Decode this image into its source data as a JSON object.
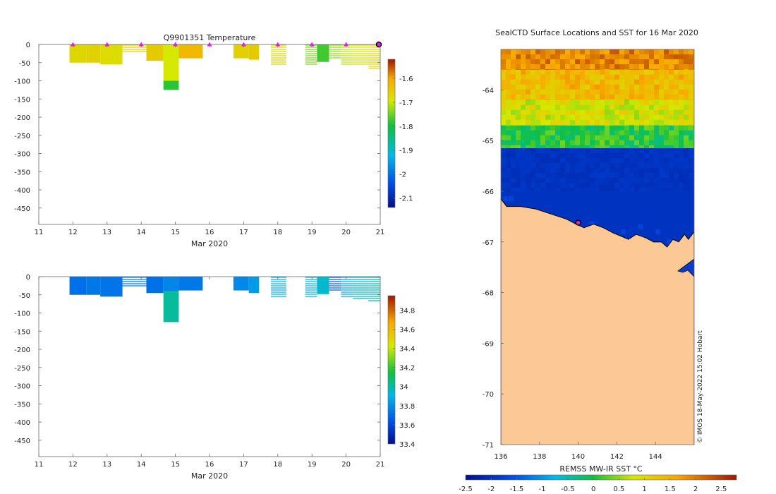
{
  "chart_data": [
    {
      "type": "heatmap",
      "id": "temperature",
      "title": "Q9901351  Temperature",
      "xlabel": "Mar 2020",
      "x_ticks": [
        11,
        12,
        13,
        14,
        15,
        16,
        17,
        18,
        19,
        20,
        21
      ],
      "xlim": [
        11,
        21
      ],
      "y_ticks": [
        0,
        -50,
        -100,
        -150,
        -200,
        -250,
        -300,
        -350,
        -400,
        -450
      ],
      "ylim": [
        -495,
        0
      ],
      "colorbar": {
        "ticks": [
          -1.6,
          -1.7,
          -1.8,
          -1.9,
          -2,
          -2.1
        ],
        "range": [
          -2.14,
          -1.52
        ]
      },
      "profile_markers": [
        12,
        13,
        14,
        15,
        16,
        17,
        18,
        19,
        20
      ],
      "last_position_marker": 21,
      "casts": [
        {
          "x0": 11.9,
          "x1": 12.4,
          "depth": 50,
          "value": -1.72,
          "style": "block"
        },
        {
          "x0": 12.4,
          "x1": 12.8,
          "depth": 50,
          "value": -1.71,
          "style": "block"
        },
        {
          "x0": 12.8,
          "x1": 13.45,
          "depth": 55,
          "value": -1.73,
          "style": "block"
        },
        {
          "x0": 13.45,
          "x1": 14.15,
          "depth": 25,
          "value": -1.71,
          "style": "lines"
        },
        {
          "x0": 14.15,
          "x1": 14.65,
          "depth": 45,
          "value": -1.7,
          "style": "block"
        },
        {
          "x0": 14.65,
          "x1": 15.1,
          "depth": 100,
          "value": -1.75,
          "style": "block"
        },
        {
          "x0": 14.65,
          "x1": 15.1,
          "top": 100,
          "depth": 125,
          "value": -1.83,
          "style": "block"
        },
        {
          "x0": 15.1,
          "x1": 15.8,
          "depth": 38,
          "value": -1.67,
          "style": "block"
        },
        {
          "x0": 16.7,
          "x1": 17.15,
          "depth": 38,
          "value": -1.71,
          "style": "block"
        },
        {
          "x0": 17.15,
          "x1": 17.45,
          "depth": 42,
          "value": -1.7,
          "style": "block"
        },
        {
          "x0": 17.8,
          "x1": 18.25,
          "depth": 60,
          "value": -1.72,
          "style": "lines"
        },
        {
          "x0": 18.8,
          "x1": 19.15,
          "depth": 58,
          "value": -1.79,
          "style": "lines"
        },
        {
          "x0": 19.15,
          "x1": 19.5,
          "depth": 48,
          "value": -1.82,
          "style": "block"
        },
        {
          "x0": 19.5,
          "x1": 19.85,
          "depth": 40,
          "value": -1.78,
          "style": "lines"
        },
        {
          "x0": 19.85,
          "x1": 20.2,
          "depth": 55,
          "value": -1.76,
          "style": "lines"
        },
        {
          "x0": 20.2,
          "x1": 20.65,
          "depth": 60,
          "value": -1.74,
          "style": "lines"
        },
        {
          "x0": 20.65,
          "x1": 21.0,
          "depth": 68,
          "value": -1.72,
          "style": "lines"
        }
      ]
    },
    {
      "type": "heatmap",
      "id": "salinity",
      "title": "",
      "xlabel": "Mar 2020",
      "x_ticks": [
        11,
        12,
        13,
        14,
        15,
        16,
        17,
        18,
        19,
        20,
        21
      ],
      "xlim": [
        11,
        21
      ],
      "y_ticks": [
        0,
        -50,
        -100,
        -150,
        -200,
        -250,
        -300,
        -350,
        -400,
        -450
      ],
      "ylim": [
        -495,
        0
      ],
      "colorbar": {
        "ticks": [
          34.8,
          34.6,
          34.4,
          34.2,
          34,
          33.8,
          33.6,
          33.4
        ],
        "range": [
          33.4,
          34.95
        ]
      },
      "casts": [
        {
          "x0": 11.9,
          "x1": 12.4,
          "depth": 50,
          "value": 33.74,
          "style": "block"
        },
        {
          "x0": 12.4,
          "x1": 12.8,
          "depth": 50,
          "value": 33.76,
          "style": "block"
        },
        {
          "x0": 12.8,
          "x1": 13.45,
          "depth": 55,
          "value": 33.75,
          "style": "block"
        },
        {
          "x0": 13.45,
          "x1": 14.15,
          "depth": 28,
          "value": 33.77,
          "style": "lines"
        },
        {
          "x0": 14.15,
          "x1": 14.65,
          "depth": 45,
          "value": 33.74,
          "style": "block"
        },
        {
          "x0": 14.65,
          "x1": 15.1,
          "depth": 40,
          "value": 33.79,
          "style": "block"
        },
        {
          "x0": 14.65,
          "x1": 15.1,
          "top": 40,
          "depth": 125,
          "value": 34.02,
          "style": "block"
        },
        {
          "x0": 15.1,
          "x1": 15.8,
          "depth": 38,
          "value": 33.76,
          "style": "block"
        },
        {
          "x0": 16.7,
          "x1": 17.15,
          "depth": 38,
          "value": 33.8,
          "style": "block"
        },
        {
          "x0": 17.15,
          "x1": 17.45,
          "depth": 45,
          "value": 33.84,
          "style": "block"
        },
        {
          "x0": 17.8,
          "x1": 18.25,
          "depth": 60,
          "value": 33.9,
          "style": "lines"
        },
        {
          "x0": 18.8,
          "x1": 19.15,
          "depth": 58,
          "value": 33.92,
          "style": "lines"
        },
        {
          "x0": 19.15,
          "x1": 19.5,
          "depth": 48,
          "value": 33.95,
          "style": "block"
        },
        {
          "x0": 19.5,
          "x1": 19.85,
          "depth": 40,
          "value": 33.7,
          "style": "lines"
        },
        {
          "x0": 19.85,
          "x1": 20.2,
          "depth": 55,
          "value": 33.88,
          "style": "lines"
        },
        {
          "x0": 20.2,
          "x1": 20.65,
          "depth": 62,
          "value": 33.96,
          "style": "lines"
        },
        {
          "x0": 20.65,
          "x1": 21.0,
          "depth": 70,
          "value": 33.98,
          "style": "lines"
        }
      ]
    },
    {
      "type": "heatmap",
      "id": "sst_map",
      "title": "SealCTD Surface Locations and SST for 16 Mar 2020",
      "x_ticks": [
        136,
        138,
        140,
        142,
        144
      ],
      "xlim": [
        136,
        146
      ],
      "y_ticks": [
        -64,
        -65,
        -66,
        -67,
        -68,
        -69,
        -70,
        -71
      ],
      "ylim": [
        -71,
        -63.2
      ],
      "colorbar_label": "REMSS MW-IR SST °C",
      "colorbar": {
        "ticks": [
          -2.5,
          -2,
          -1.5,
          -1,
          -0.5,
          0,
          0.5,
          1,
          1.5,
          2,
          2.5
        ],
        "range": [
          -2.5,
          2.8
        ]
      },
      "zones": [
        {
          "lat_top": -63.2,
          "lat_bottom": -63.6,
          "value": 2.0
        },
        {
          "lat_top": -63.6,
          "lat_bottom": -64.2,
          "value": 1.5
        },
        {
          "lat_top": -64.2,
          "lat_bottom": -64.7,
          "value": 0.9
        },
        {
          "lat_top": -64.7,
          "lat_bottom": -65.15,
          "value": 0.1
        },
        {
          "lat_top": -65.15,
          "lat_bottom": -66.0,
          "value": -2.0
        }
      ],
      "coastline": [
        [
          136,
          -66.15
        ],
        [
          136.3,
          -66.3
        ],
        [
          137,
          -66.3
        ],
        [
          137.8,
          -66.35
        ],
        [
          138.6,
          -66.45
        ],
        [
          139.4,
          -66.55
        ],
        [
          139.9,
          -66.65
        ],
        [
          140.3,
          -66.72
        ],
        [
          140.8,
          -66.65
        ],
        [
          141.3,
          -66.72
        ],
        [
          141.8,
          -66.82
        ],
        [
          142.3,
          -66.9
        ],
        [
          142.6,
          -66.95
        ],
        [
          143.0,
          -66.85
        ],
        [
          143.5,
          -66.92
        ],
        [
          143.9,
          -67.0
        ],
        [
          144.3,
          -67.0
        ],
        [
          144.6,
          -67.1
        ],
        [
          144.9,
          -66.95
        ],
        [
          145.2,
          -67.0
        ],
        [
          145.5,
          -66.85
        ],
        [
          145.7,
          -66.95
        ],
        [
          146,
          -66.8
        ]
      ],
      "seal_location": [
        140.0,
        -66.62
      ],
      "watermark": "© IMOS 18-May-2022 15:02 Hobart"
    }
  ]
}
